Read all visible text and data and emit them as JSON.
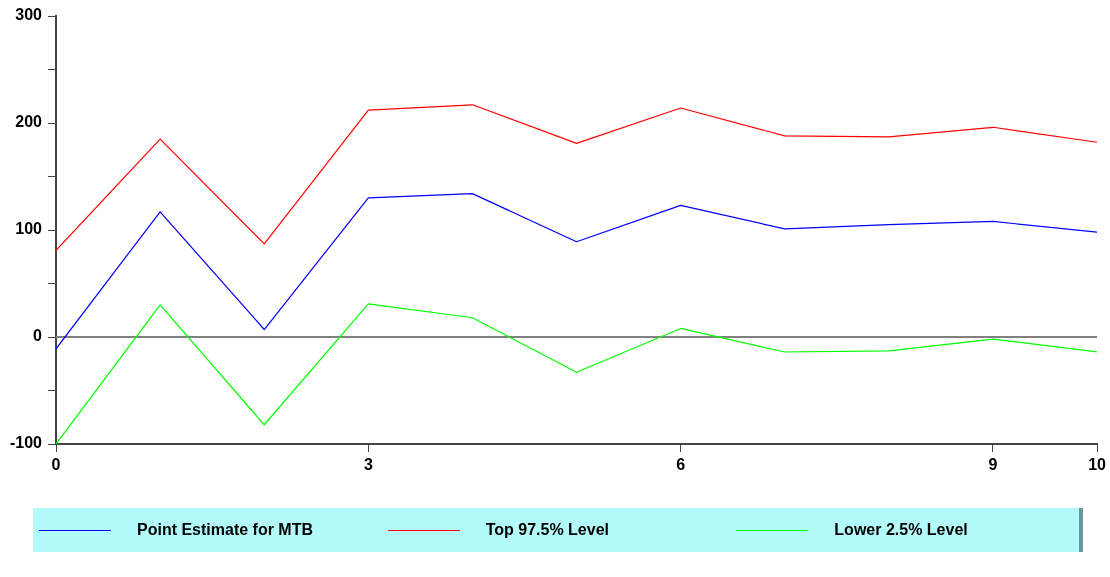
{
  "chart_data": {
    "type": "line",
    "x": [
      0,
      1,
      2,
      3,
      4,
      5,
      6,
      7,
      8,
      9,
      10
    ],
    "series": [
      {
        "name": "Point Estimate for MTB",
        "color": "#0000ff",
        "values": [
          -11,
          117,
          7,
          130,
          134,
          89,
          123,
          101,
          105,
          108,
          98
        ]
      },
      {
        "name": "Top 97.5% Level",
        "color": "#ff0000",
        "values": [
          81,
          185,
          87,
          212,
          217,
          181,
          214,
          188,
          187,
          196,
          182
        ]
      },
      {
        "name": "Lower 2.5% Level",
        "color": "#00ff00",
        "values": [
          -100,
          30,
          -82,
          31,
          18,
          -33,
          8,
          -14,
          -13,
          -2,
          -14
        ]
      }
    ],
    "xlim": [
      0,
      10
    ],
    "xticks": [
      0,
      3,
      6,
      9,
      10
    ],
    "ylim": [
      -100,
      300
    ],
    "yticks": [
      -100,
      {
        "value": -50,
        "label": null
      },
      0,
      {
        "value": 50,
        "label": null
      },
      100,
      {
        "value": 150,
        "label": null
      },
      200,
      {
        "value": 250,
        "label": null
      },
      300
    ],
    "ref_lines": [
      {
        "axis": "y",
        "value": 0,
        "color": "#808080"
      }
    ],
    "grid": false,
    "legend": "bottom",
    "marker": "none",
    "line_style": "solid"
  }
}
